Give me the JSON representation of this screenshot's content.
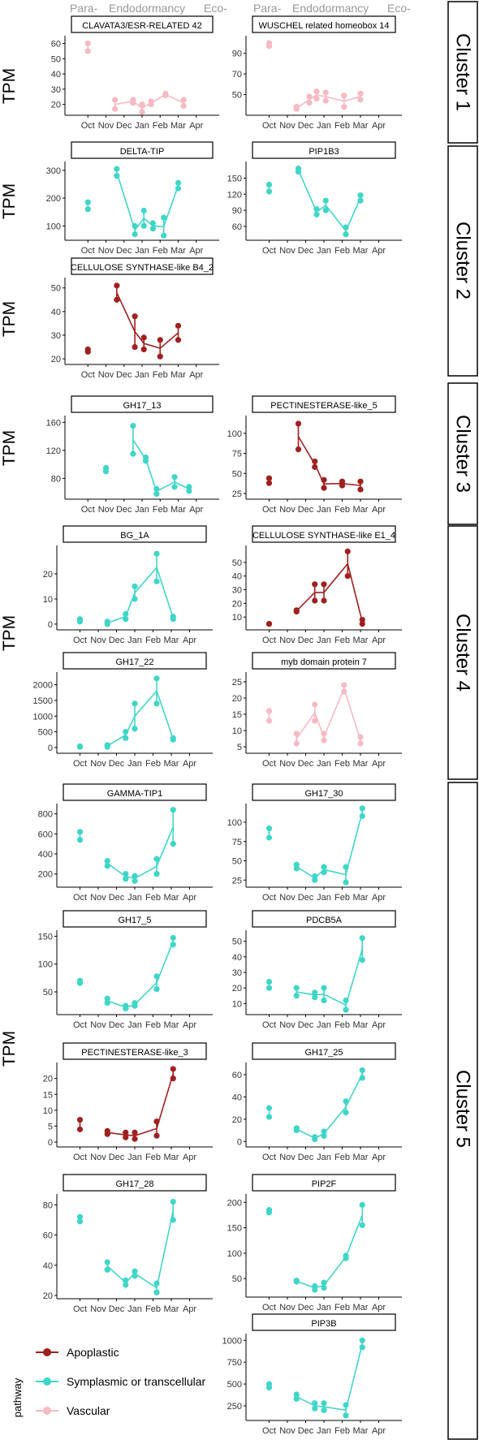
{
  "header": {
    "labels": [
      "Para-",
      "Endodormancy",
      "Eco-"
    ]
  },
  "axis": {
    "months": [
      "Oct",
      "Nov",
      "Dec",
      "Jan",
      "Feb",
      "Mar",
      "Apr"
    ]
  },
  "ylabel": "TPM",
  "legend": {
    "title": "pathway",
    "entries": [
      {
        "key": "apoplastic",
        "label": "Apoplastic",
        "color": "#a02020"
      },
      {
        "key": "symplasmic",
        "label": "Symplasmic or transcellular",
        "color": "#3fd6c8"
      },
      {
        "key": "vascular",
        "label": "Vascular",
        "color": "#f7b9c4"
      }
    ]
  },
  "clusters": [
    {
      "id": 1,
      "label": "Cluster 1"
    },
    {
      "id": 2,
      "label": "Cluster 2"
    },
    {
      "id": 3,
      "label": "Cluster 3"
    },
    {
      "id": 4,
      "label": "Cluster 4"
    },
    {
      "id": 5,
      "label": "Cluster 5"
    }
  ],
  "chart_data": [
    {
      "type": "line",
      "title": "CLAVATA3/ESR-RELATED 42",
      "cluster": 1,
      "pathway": "vascular",
      "yticks": [
        20,
        30,
        40,
        50,
        60
      ],
      "ylim": [
        15,
        63
      ],
      "single": [
        {
          "x": 1,
          "y": [
            55,
            60
          ]
        }
      ],
      "line": [
        {
          "x": 2.5,
          "y": [
            17,
            23
          ]
        },
        {
          "x": 3.5,
          "y": [
            21,
            23
          ]
        },
        {
          "x": 4.0,
          "y": [
            15,
            20
          ]
        },
        {
          "x": 4.5,
          "y": [
            20,
            22
          ]
        },
        {
          "x": 5.3,
          "y": [
            26,
            27
          ]
        },
        {
          "x": 6.3,
          "y": [
            19,
            23
          ]
        }
      ]
    },
    {
      "type": "line",
      "title": "WUSCHEL related homeobox 14",
      "cluster": 1,
      "pathway": "vascular",
      "yticks": [
        50,
        70,
        90
      ],
      "ylim": [
        33,
        104
      ],
      "single": [
        {
          "x": 1,
          "y": [
            97,
            100
          ]
        }
      ],
      "line": [
        {
          "x": 2.5,
          "y": [
            36,
            38
          ]
        },
        {
          "x": 3.2,
          "y": [
            42,
            48
          ]
        },
        {
          "x": 3.6,
          "y": [
            46,
            53
          ]
        },
        {
          "x": 4.1,
          "y": [
            44,
            52
          ]
        },
        {
          "x": 5.1,
          "y": [
            38,
            49
          ]
        },
        {
          "x": 6.0,
          "y": [
            45,
            51
          ]
        }
      ]
    },
    {
      "type": "line",
      "title": "DELTA-TIP",
      "cluster": 2,
      "pathway": "symplasmic",
      "yticks": [
        100,
        200,
        300
      ],
      "ylim": [
        60,
        320
      ],
      "single": [
        {
          "x": 1,
          "y": [
            160,
            185
          ]
        }
      ],
      "line": [
        {
          "x": 2.6,
          "y": [
            280,
            305
          ]
        },
        {
          "x": 3.6,
          "y": [
            70,
            100
          ]
        },
        {
          "x": 4.1,
          "y": [
            100,
            155
          ]
        },
        {
          "x": 4.6,
          "y": [
            90,
            110
          ]
        },
        {
          "x": 5.2,
          "y": [
            65,
            130
          ]
        },
        {
          "x": 6.0,
          "y": [
            235,
            255
          ]
        }
      ]
    },
    {
      "type": "line",
      "title": "PIP1B3",
      "cluster": 2,
      "pathway": "symplasmic",
      "yticks": [
        60,
        90,
        120,
        150
      ],
      "ylim": [
        40,
        175
      ],
      "single": [
        {
          "x": 1,
          "y": [
            125,
            138
          ]
        }
      ],
      "line": [
        {
          "x": 2.6,
          "y": [
            162,
            168
          ]
        },
        {
          "x": 3.6,
          "y": [
            82,
            92
          ]
        },
        {
          "x": 4.1,
          "y": [
            90,
            108
          ]
        },
        {
          "x": 5.2,
          "y": [
            45,
            58
          ]
        },
        {
          "x": 6.0,
          "y": [
            108,
            118
          ]
        }
      ]
    },
    {
      "type": "line",
      "title": "CELLULOSE SYNTHASE-like B4_2",
      "cluster": 2,
      "pathway": "apoplastic",
      "yticks": [
        20,
        30,
        40,
        50
      ],
      "ylim": [
        19,
        53
      ],
      "single": [
        {
          "x": 1,
          "y": [
            23,
            24
          ]
        }
      ],
      "line": [
        {
          "x": 2.6,
          "y": [
            45,
            51
          ]
        },
        {
          "x": 3.6,
          "y": [
            25,
            38
          ]
        },
        {
          "x": 4.1,
          "y": [
            24,
            29
          ]
        },
        {
          "x": 5.0,
          "y": [
            21,
            28
          ]
        },
        {
          "x": 6.0,
          "y": [
            28,
            34
          ]
        }
      ]
    },
    {
      "type": "line",
      "title": "GH17_13",
      "cluster": 3,
      "pathway": "symplasmic",
      "yticks": [
        80,
        120,
        160
      ],
      "ylim": [
        55,
        165
      ],
      "single": [
        {
          "x": 2,
          "y": [
            90,
            95
          ]
        }
      ],
      "line": [
        {
          "x": 3.5,
          "y": [
            115,
            155
          ]
        },
        {
          "x": 4.2,
          "y": [
            105,
            110
          ]
        },
        {
          "x": 4.8,
          "y": [
            58,
            65
          ]
        },
        {
          "x": 5.8,
          "y": [
            68,
            82
          ]
        },
        {
          "x": 6.6,
          "y": [
            62,
            68
          ]
        }
      ]
    },
    {
      "type": "line",
      "title": "PECTINESTERASE-like_5",
      "cluster": 3,
      "pathway": "apoplastic",
      "yticks": [
        25,
        50,
        75,
        100
      ],
      "ylim": [
        22,
        118
      ],
      "single": [
        {
          "x": 1,
          "y": [
            38,
            44
          ]
        }
      ],
      "line": [
        {
          "x": 2.6,
          "y": [
            80,
            112
          ]
        },
        {
          "x": 3.5,
          "y": [
            58,
            65
          ]
        },
        {
          "x": 4.0,
          "y": [
            32,
            42
          ]
        },
        {
          "x": 5.0,
          "y": [
            35,
            40
          ]
        },
        {
          "x": 6.0,
          "y": [
            30,
            40
          ]
        }
      ]
    },
    {
      "type": "line",
      "title": "BG_1A",
      "cluster": 4,
      "pathway": "symplasmic",
      "yticks": [
        0,
        10,
        20
      ],
      "ylim": [
        -1,
        30
      ],
      "single": [
        {
          "x": 1,
          "y": [
            1,
            2
          ]
        }
      ],
      "line": [
        {
          "x": 2.5,
          "y": [
            0,
            1
          ]
        },
        {
          "x": 3.5,
          "y": [
            2,
            4
          ]
        },
        {
          "x": 4.0,
          "y": [
            10,
            15
          ]
        },
        {
          "x": 5.2,
          "y": [
            17,
            28
          ]
        },
        {
          "x": 6.1,
          "y": [
            2,
            3
          ]
        }
      ]
    },
    {
      "type": "line",
      "title": "CELLULOSE SYNTHASE-like E1_4",
      "cluster": 4,
      "pathway": "apoplastic",
      "yticks": [
        10,
        20,
        30,
        40,
        50
      ],
      "ylim": [
        3,
        60
      ],
      "single": [
        {
          "x": 1,
          "y": [
            5,
            5
          ]
        }
      ],
      "line": [
        {
          "x": 2.5,
          "y": [
            14,
            15
          ]
        },
        {
          "x": 3.5,
          "y": [
            22,
            34
          ]
        },
        {
          "x": 4.0,
          "y": [
            22,
            34
          ]
        },
        {
          "x": 5.3,
          "y": [
            40,
            58
          ]
        },
        {
          "x": 6.1,
          "y": [
            5,
            8
          ]
        }
      ]
    },
    {
      "type": "line",
      "title": "GH17_22",
      "cluster": 4,
      "pathway": "symplasmic",
      "yticks": [
        0,
        500,
        1000,
        1500,
        2000
      ],
      "ylim": [
        -80,
        2300
      ],
      "single": [
        {
          "x": 1,
          "y": [
            20,
            40
          ]
        }
      ],
      "line": [
        {
          "x": 2.5,
          "y": [
            20,
            80
          ]
        },
        {
          "x": 3.5,
          "y": [
            300,
            500
          ]
        },
        {
          "x": 4.0,
          "y": [
            600,
            1400
          ]
        },
        {
          "x": 5.2,
          "y": [
            1400,
            2200
          ]
        },
        {
          "x": 6.1,
          "y": [
            250,
            300
          ]
        }
      ]
    },
    {
      "type": "line",
      "title": "myb domain protein 7",
      "cluster": 4,
      "pathway": "vascular",
      "yticks": [
        5,
        10,
        15,
        20,
        25
      ],
      "ylim": [
        4,
        27
      ],
      "single": [
        {
          "x": 1,
          "y": [
            13,
            16
          ]
        }
      ],
      "line": [
        {
          "x": 2.5,
          "y": [
            6,
            9
          ]
        },
        {
          "x": 3.5,
          "y": [
            13,
            18
          ]
        },
        {
          "x": 4.0,
          "y": [
            7,
            9
          ]
        },
        {
          "x": 5.1,
          "y": [
            22,
            24
          ]
        },
        {
          "x": 6.0,
          "y": [
            6,
            8
          ]
        }
      ]
    },
    {
      "type": "line",
      "title": "GAMMA-TIP1",
      "cluster": 5,
      "pathway": "symplasmic",
      "yticks": [
        200,
        400,
        600,
        800
      ],
      "ylim": [
        100,
        870
      ],
      "single": [
        {
          "x": 1,
          "y": [
            540,
            620
          ]
        }
      ],
      "line": [
        {
          "x": 2.5,
          "y": [
            280,
            330
          ]
        },
        {
          "x": 3.5,
          "y": [
            150,
            200
          ]
        },
        {
          "x": 4.0,
          "y": [
            130,
            180
          ]
        },
        {
          "x": 5.2,
          "y": [
            200,
            350
          ]
        },
        {
          "x": 6.1,
          "y": [
            500,
            840
          ]
        }
      ]
    },
    {
      "type": "line",
      "title": "GH17_30",
      "cluster": 5,
      "pathway": "symplasmic",
      "yticks": [
        25,
        50,
        75,
        100
      ],
      "ylim": [
        20,
        120
      ],
      "single": [
        {
          "x": 1,
          "y": [
            80,
            92
          ]
        }
      ],
      "line": [
        {
          "x": 2.5,
          "y": [
            40,
            45
          ]
        },
        {
          "x": 3.5,
          "y": [
            25,
            30
          ]
        },
        {
          "x": 4.0,
          "y": [
            35,
            42
          ]
        },
        {
          "x": 5.2,
          "y": [
            22,
            42
          ]
        },
        {
          "x": 6.1,
          "y": [
            108,
            118
          ]
        }
      ]
    },
    {
      "type": "line",
      "title": "GH17_5",
      "cluster": 5,
      "pathway": "symplasmic",
      "yticks": [
        50,
        100,
        150
      ],
      "ylim": [
        15,
        155
      ],
      "single": [
        {
          "x": 1,
          "y": [
            66,
            70
          ]
        }
      ],
      "line": [
        {
          "x": 2.5,
          "y": [
            30,
            38
          ]
        },
        {
          "x": 3.5,
          "y": [
            20,
            25
          ]
        },
        {
          "x": 4.0,
          "y": [
            25,
            30
          ]
        },
        {
          "x": 5.2,
          "y": [
            55,
            78
          ]
        },
        {
          "x": 6.1,
          "y": [
            135,
            147
          ]
        }
      ]
    },
    {
      "type": "line",
      "title": "PDCB5A",
      "cluster": 5,
      "pathway": "symplasmic",
      "yticks": [
        10,
        20,
        30,
        40,
        50
      ],
      "ylim": [
        5,
        55
      ],
      "single": [
        {
          "x": 1,
          "y": [
            20,
            24
          ]
        }
      ],
      "line": [
        {
          "x": 2.5,
          "y": [
            15,
            20
          ]
        },
        {
          "x": 3.5,
          "y": [
            14,
            17
          ]
        },
        {
          "x": 4.0,
          "y": [
            12,
            20
          ]
        },
        {
          "x": 5.2,
          "y": [
            6,
            12
          ]
        },
        {
          "x": 6.1,
          "y": [
            38,
            52
          ]
        }
      ]
    },
    {
      "type": "line",
      "title": "PECTINESTERASE-like_3",
      "cluster": 5,
      "pathway": "apoplastic",
      "yticks": [
        0,
        5,
        10,
        15,
        20
      ],
      "ylim": [
        -0.5,
        24
      ],
      "single": [
        {
          "x": 1,
          "y": [
            4,
            7
          ]
        }
      ],
      "line": [
        {
          "x": 2.5,
          "y": [
            2.5,
            3.5
          ]
        },
        {
          "x": 3.5,
          "y": [
            1.5,
            3
          ]
        },
        {
          "x": 4.0,
          "y": [
            1,
            3
          ]
        },
        {
          "x": 5.2,
          "y": [
            2,
            6.5
          ]
        },
        {
          "x": 6.1,
          "y": [
            20,
            23
          ]
        }
      ]
    },
    {
      "type": "line",
      "title": "GH17_25",
      "cluster": 5,
      "pathway": "symplasmic",
      "yticks": [
        0,
        20,
        40,
        60
      ],
      "ylim": [
        -2,
        68
      ],
      "single": [
        {
          "x": 1,
          "y": [
            22,
            30
          ]
        }
      ],
      "line": [
        {
          "x": 2.5,
          "y": [
            10,
            12
          ]
        },
        {
          "x": 3.5,
          "y": [
            2,
            4
          ]
        },
        {
          "x": 4.0,
          "y": [
            5,
            9
          ]
        },
        {
          "x": 5.2,
          "y": [
            26,
            36
          ]
        },
        {
          "x": 6.1,
          "y": [
            57,
            64
          ]
        }
      ]
    },
    {
      "type": "line",
      "title": "GH17_28",
      "cluster": 5,
      "pathway": "symplasmic",
      "yticks": [
        20,
        40,
        60,
        80
      ],
      "ylim": [
        20,
        85
      ],
      "single": [
        {
          "x": 1,
          "y": [
            69,
            72
          ]
        }
      ],
      "line": [
        {
          "x": 2.5,
          "y": [
            37,
            42
          ]
        },
        {
          "x": 3.5,
          "y": [
            27,
            30
          ]
        },
        {
          "x": 4.0,
          "y": [
            33,
            36
          ]
        },
        {
          "x": 5.2,
          "y": [
            22,
            28
          ]
        },
        {
          "x": 6.1,
          "y": [
            70,
            82
          ]
        }
      ]
    },
    {
      "type": "line",
      "title": "PIP2F",
      "cluster": 5,
      "pathway": "symplasmic",
      "yticks": [
        50,
        100,
        150,
        200
      ],
      "ylim": [
        20,
        210
      ],
      "single": [
        {
          "x": 1,
          "y": [
            180,
            185
          ]
        }
      ],
      "line": [
        {
          "x": 2.5,
          "y": [
            44,
            46
          ]
        },
        {
          "x": 3.5,
          "y": [
            28,
            35
          ]
        },
        {
          "x": 4.0,
          "y": [
            32,
            42
          ]
        },
        {
          "x": 5.2,
          "y": [
            90,
            95
          ]
        },
        {
          "x": 6.1,
          "y": [
            155,
            195
          ]
        }
      ]
    },
    {
      "type": "line",
      "title": "PIP3B",
      "cluster": 5,
      "pathway": "symplasmic",
      "yticks": [
        250,
        500,
        750,
        1000
      ],
      "ylim": [
        120,
        1040
      ],
      "single": [
        {
          "x": 1,
          "y": [
            460,
            500
          ]
        }
      ],
      "line": [
        {
          "x": 2.5,
          "y": [
            330,
            380
          ]
        },
        {
          "x": 3.5,
          "y": [
            220,
            280
          ]
        },
        {
          "x": 4.0,
          "y": [
            200,
            280
          ]
        },
        {
          "x": 5.2,
          "y": [
            140,
            260
          ]
        },
        {
          "x": 6.1,
          "y": [
            920,
            1000
          ]
        }
      ]
    }
  ]
}
